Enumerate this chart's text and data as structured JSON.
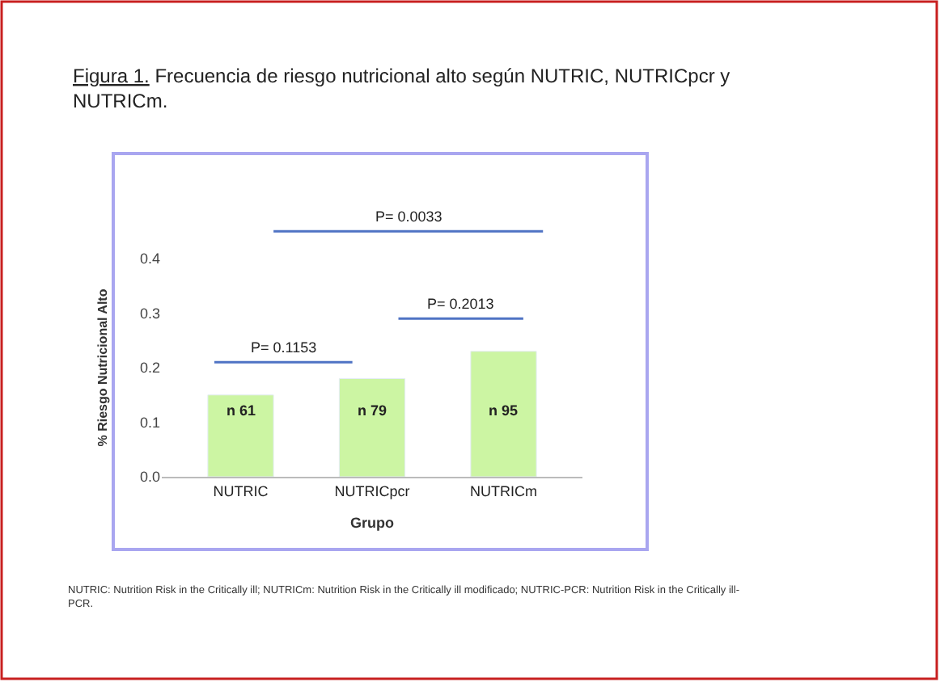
{
  "chart_data": {
    "type": "bar",
    "title": "Figura 1. Frecuencia de riesgo nutricional alto según NUTRIC, NUTRICpcr y NUTRICm.",
    "xlabel": "Grupo",
    "ylabel": "% Riesgo Nutricional Alto",
    "categories": [
      "NUTRIC",
      "NUTRICpcr",
      "NUTRICm"
    ],
    "values": [
      0.15,
      0.18,
      0.23
    ],
    "color": "#ccf5a3",
    "ylim": [
      0,
      0.4
    ],
    "yticks": [
      {
        "value": 0,
        "label": "0.0"
      },
      0.1,
      0.2,
      0.3,
      0.4
    ],
    "annotations": [
      "n 61",
      "n 79",
      "n 95",
      "P= 0.1153",
      "P= 0.2013",
      "P= 0.0033",
      "NUTRIC: Nutrition Risk in the Critically ill; NUTRICm: Nutrition Risk in the Critically ill modificado; NUTRIC-PCR: Nutrition Risk in the Critically ill-PCR."
    ]
  }
}
